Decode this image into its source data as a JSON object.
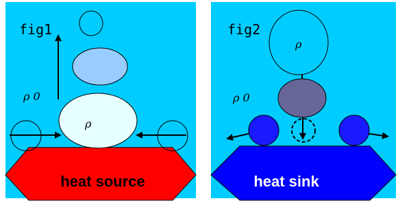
{
  "fig1": {
    "label": "fig1",
    "rho0": "ρ 0",
    "rho": "ρ",
    "base": "heat source"
  },
  "fig2": {
    "label": "fig2",
    "rho0": "ρ 0",
    "rho": "ρ",
    "base": "heat sink"
  }
}
